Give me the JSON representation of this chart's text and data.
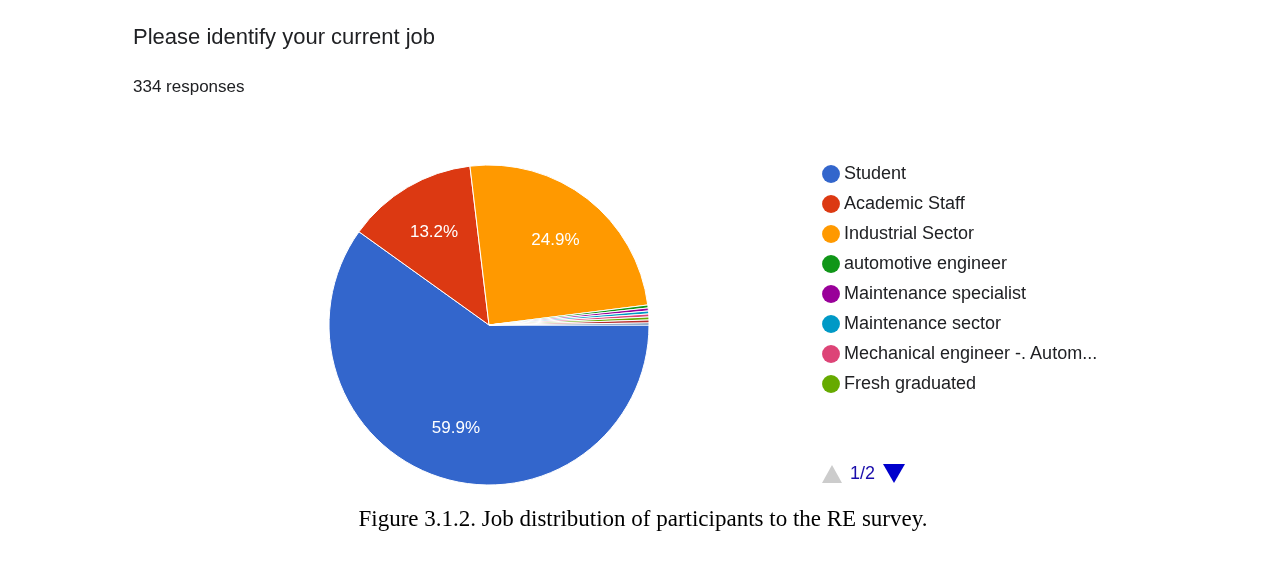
{
  "chart_data": {
    "type": "pie",
    "title": "Please identify your current job",
    "subtitle": "334 responses",
    "categories": [
      "Student",
      "Academic Staff",
      "Industrial Sector",
      "automotive engineer",
      "Maintenance specialist",
      "Maintenance sector",
      "Mechanical engineer -. Autom...",
      "Fresh graduated",
      null,
      null
    ],
    "values": [
      59.9,
      13.2,
      24.9,
      0.3,
      0.3,
      0.3,
      0.3,
      0.3,
      0.3,
      0.2
    ],
    "colors": [
      "#3366cc",
      "#dc3912",
      "#ff9900",
      "#109618",
      "#990099",
      "#0099c6",
      "#dd4477",
      "#66aa00",
      "#b82e2e",
      "#316395"
    ],
    "value_labels": [
      "59.9%",
      "13.2%",
      "24.9%",
      null,
      null,
      null,
      null,
      null,
      null,
      null
    ],
    "legend": "right",
    "annotations": [
      "Figure 3.1.2. Job distribution of participants to the RE survey.",
      "1/2"
    ]
  }
}
